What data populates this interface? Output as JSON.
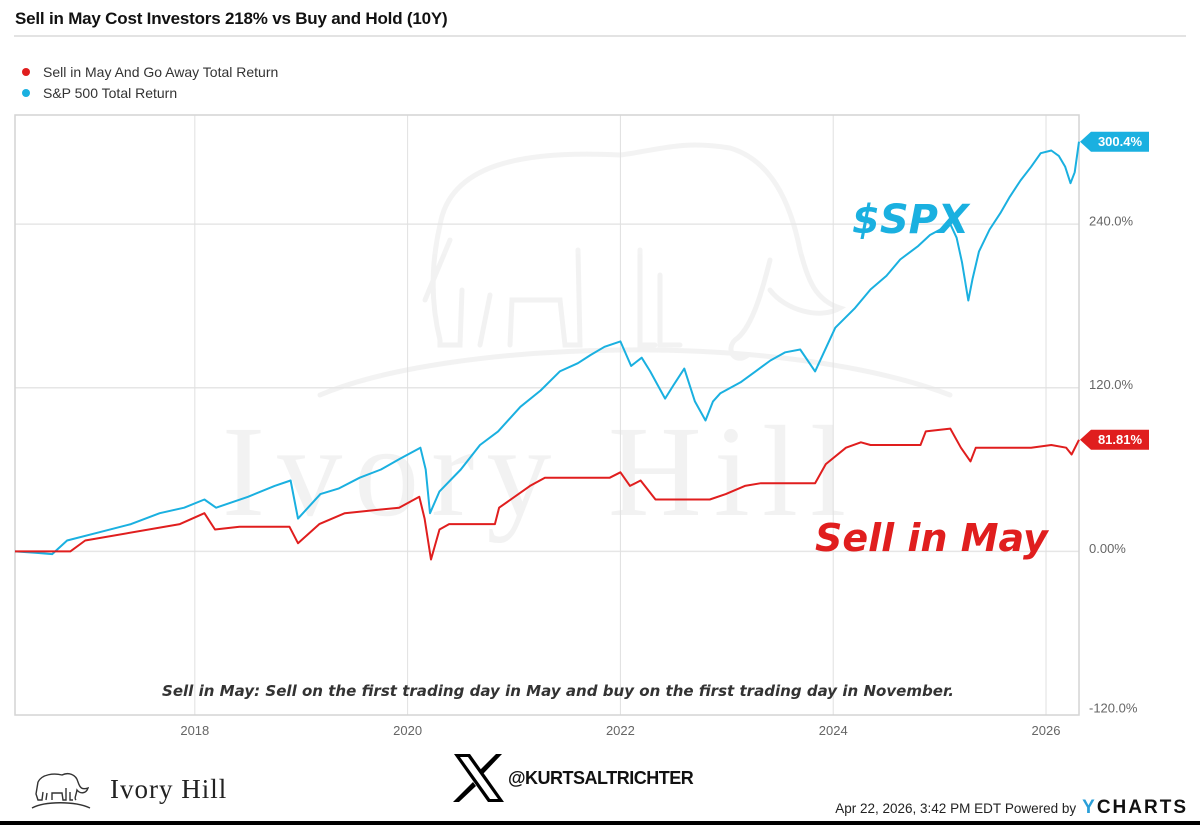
{
  "chart_data": {
    "type": "line",
    "title": "Sell in May Cost Investors 218% vs Buy and Hold (10Y)",
    "xlabel": "",
    "ylabel": "",
    "xlim": [
      2016.31,
      2026.31
    ],
    "ylim": [
      -120,
      320
    ],
    "x_ticks": [
      2018,
      2020,
      2022,
      2024,
      2026
    ],
    "x_tick_labels": [
      "2018",
      "2020",
      "2022",
      "2024",
      "2026"
    ],
    "y_ticks": [
      -120,
      0,
      120,
      240
    ],
    "y_tick_labels": [
      "-120.0%",
      "0.00%",
      "120.0%",
      "240.0%"
    ],
    "grid": true,
    "legend_position": "top-left",
    "series": [
      {
        "name": "Sell in May And Go Away Total Return",
        "color": "#e01e1e",
        "end_label": "81.81%",
        "points": [
          [
            2016.31,
            0
          ],
          [
            2016.83,
            0
          ],
          [
            2016.97,
            8
          ],
          [
            2017.86,
            20
          ],
          [
            2018.09,
            28
          ],
          [
            2018.19,
            16
          ],
          [
            2018.42,
            18
          ],
          [
            2018.89,
            18
          ],
          [
            2018.97,
            6
          ],
          [
            2019.17,
            20
          ],
          [
            2019.41,
            28
          ],
          [
            2019.92,
            32
          ],
          [
            2020.11,
            40
          ],
          [
            2020.16,
            24
          ],
          [
            2020.22,
            -6
          ],
          [
            2020.3,
            16
          ],
          [
            2020.39,
            20
          ],
          [
            2020.82,
            20
          ],
          [
            2020.86,
            32
          ],
          [
            2021.15,
            48
          ],
          [
            2021.29,
            54
          ],
          [
            2021.9,
            54
          ],
          [
            2022.0,
            58
          ],
          [
            2022.09,
            48
          ],
          [
            2022.19,
            52
          ],
          [
            2022.33,
            38
          ],
          [
            2022.84,
            38
          ],
          [
            2022.99,
            42
          ],
          [
            2023.17,
            48
          ],
          [
            2023.32,
            50
          ],
          [
            2023.83,
            50
          ],
          [
            2023.93,
            64
          ],
          [
            2024.12,
            76
          ],
          [
            2024.26,
            80
          ],
          [
            2024.35,
            78
          ],
          [
            2024.82,
            78
          ],
          [
            2024.87,
            88
          ],
          [
            2025.1,
            90
          ],
          [
            2025.2,
            76
          ],
          [
            2025.29,
            66
          ],
          [
            2025.34,
            76
          ],
          [
            2025.86,
            76
          ],
          [
            2026.05,
            78
          ],
          [
            2026.19,
            76
          ],
          [
            2026.24,
            71
          ],
          [
            2026.31,
            81.81
          ]
        ]
      },
      {
        "name": "S&P 500 Total Return",
        "color": "#1ab0e0",
        "end_label": "300.4%",
        "points": [
          [
            2016.31,
            0
          ],
          [
            2016.5,
            -1
          ],
          [
            2016.66,
            -2
          ],
          [
            2016.8,
            8
          ],
          [
            2017.1,
            14
          ],
          [
            2017.4,
            20
          ],
          [
            2017.67,
            28
          ],
          [
            2017.9,
            32
          ],
          [
            2018.09,
            38
          ],
          [
            2018.2,
            32
          ],
          [
            2018.5,
            40
          ],
          [
            2018.75,
            48
          ],
          [
            2018.9,
            52
          ],
          [
            2018.97,
            24
          ],
          [
            2019.18,
            42
          ],
          [
            2019.35,
            46
          ],
          [
            2019.55,
            54
          ],
          [
            2019.75,
            60
          ],
          [
            2019.93,
            68
          ],
          [
            2020.12,
            76
          ],
          [
            2020.17,
            60
          ],
          [
            2020.21,
            28
          ],
          [
            2020.3,
            44
          ],
          [
            2020.5,
            60
          ],
          [
            2020.68,
            78
          ],
          [
            2020.85,
            88
          ],
          [
            2021.06,
            106
          ],
          [
            2021.25,
            118
          ],
          [
            2021.43,
            132
          ],
          [
            2021.6,
            138
          ],
          [
            2021.72,
            144
          ],
          [
            2021.85,
            150
          ],
          [
            2022.0,
            154
          ],
          [
            2022.1,
            136
          ],
          [
            2022.2,
            142
          ],
          [
            2022.28,
            132
          ],
          [
            2022.42,
            112
          ],
          [
            2022.5,
            122
          ],
          [
            2022.6,
            134
          ],
          [
            2022.7,
            110
          ],
          [
            2022.8,
            96
          ],
          [
            2022.87,
            110
          ],
          [
            2022.94,
            116
          ],
          [
            2023.13,
            124
          ],
          [
            2023.27,
            132
          ],
          [
            2023.41,
            140
          ],
          [
            2023.55,
            146
          ],
          [
            2023.69,
            148
          ],
          [
            2023.83,
            132
          ],
          [
            2024.02,
            164
          ],
          [
            2024.2,
            178
          ],
          [
            2024.35,
            192
          ],
          [
            2024.5,
            202
          ],
          [
            2024.63,
            214
          ],
          [
            2024.8,
            224
          ],
          [
            2024.91,
            232
          ],
          [
            2025.1,
            240
          ],
          [
            2025.16,
            230
          ],
          [
            2025.21,
            212
          ],
          [
            2025.27,
            184
          ],
          [
            2025.31,
            200
          ],
          [
            2025.37,
            220
          ],
          [
            2025.47,
            236
          ],
          [
            2025.57,
            248
          ],
          [
            2025.66,
            260
          ],
          [
            2025.76,
            272
          ],
          [
            2025.86,
            282
          ],
          [
            2025.95,
            292
          ],
          [
            2026.05,
            294
          ],
          [
            2026.12,
            290
          ],
          [
            2026.18,
            282
          ],
          [
            2026.23,
            270
          ],
          [
            2026.27,
            278
          ],
          [
            2026.31,
            300.4
          ]
        ]
      }
    ],
    "annotations": [
      {
        "text": "$SPX",
        "color": "#1ab0e0"
      },
      {
        "text": "Sell in May",
        "color": "#e01e1e"
      },
      {
        "text": "Sell in May: Sell on the first trading day in May and buy on the first trading day in November.",
        "color": "#333333"
      }
    ]
  },
  "header": {
    "title": "Sell in May Cost Investors 218% vs Buy and Hold (10Y)"
  },
  "legend": [
    {
      "label": "Sell in May And Go Away Total Return",
      "color": "#e01e1e"
    },
    {
      "label": "S&P 500 Total Return",
      "color": "#1ab0e0"
    }
  ],
  "watermark": {
    "text": "Ivory Hill",
    "icon": "elephant-icon"
  },
  "footer": {
    "brand": "Ivory Hill",
    "brand_icon": "elephant-icon",
    "social_icon": "x-logo-icon",
    "handle": "@KURTSALTRICHTER",
    "timestamp": "Apr 22, 2026, 3:42 PM EDT",
    "powered_by": "Powered by",
    "provider_y": "Y",
    "provider_rest": "CHARTS"
  }
}
